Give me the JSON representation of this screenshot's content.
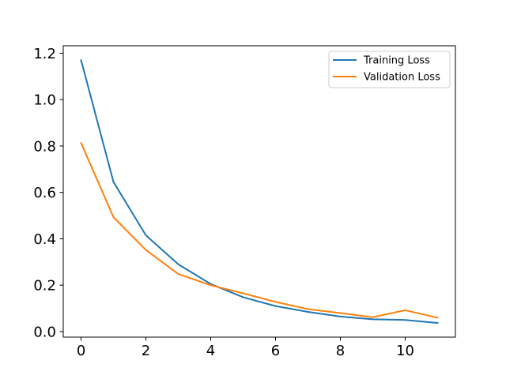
{
  "chart_data": {
    "type": "line",
    "title": "",
    "xlabel": "",
    "ylabel": "",
    "x": [
      0,
      1,
      2,
      3,
      4,
      5,
      6,
      7,
      8,
      9,
      10,
      11
    ],
    "xlim": [
      -0.55,
      11.55
    ],
    "ylim": [
      -0.024,
      1.232
    ],
    "xticks": [
      0,
      2,
      4,
      6,
      8,
      10
    ],
    "xtick_labels": [
      "0",
      "2",
      "4",
      "6",
      "8",
      "10"
    ],
    "yticks": [
      0.0,
      0.2,
      0.4,
      0.6,
      0.8,
      1.0,
      1.2
    ],
    "ytick_labels": [
      "0.0",
      "0.2",
      "0.4",
      "0.6",
      "0.8",
      "1.0",
      "1.2"
    ],
    "grid": false,
    "legend_position": "top-right",
    "series": [
      {
        "name": "Training Loss",
        "color": "#1f77b4",
        "values": [
          1.17,
          0.645,
          0.415,
          0.29,
          0.205,
          0.148,
          0.11,
          0.085,
          0.065,
          0.053,
          0.05,
          0.037
        ]
      },
      {
        "name": "Validation Loss",
        "color": "#ff7f0e",
        "values": [
          0.813,
          0.493,
          0.352,
          0.248,
          0.2,
          0.165,
          0.128,
          0.097,
          0.08,
          0.062,
          0.092,
          0.06
        ]
      }
    ]
  }
}
